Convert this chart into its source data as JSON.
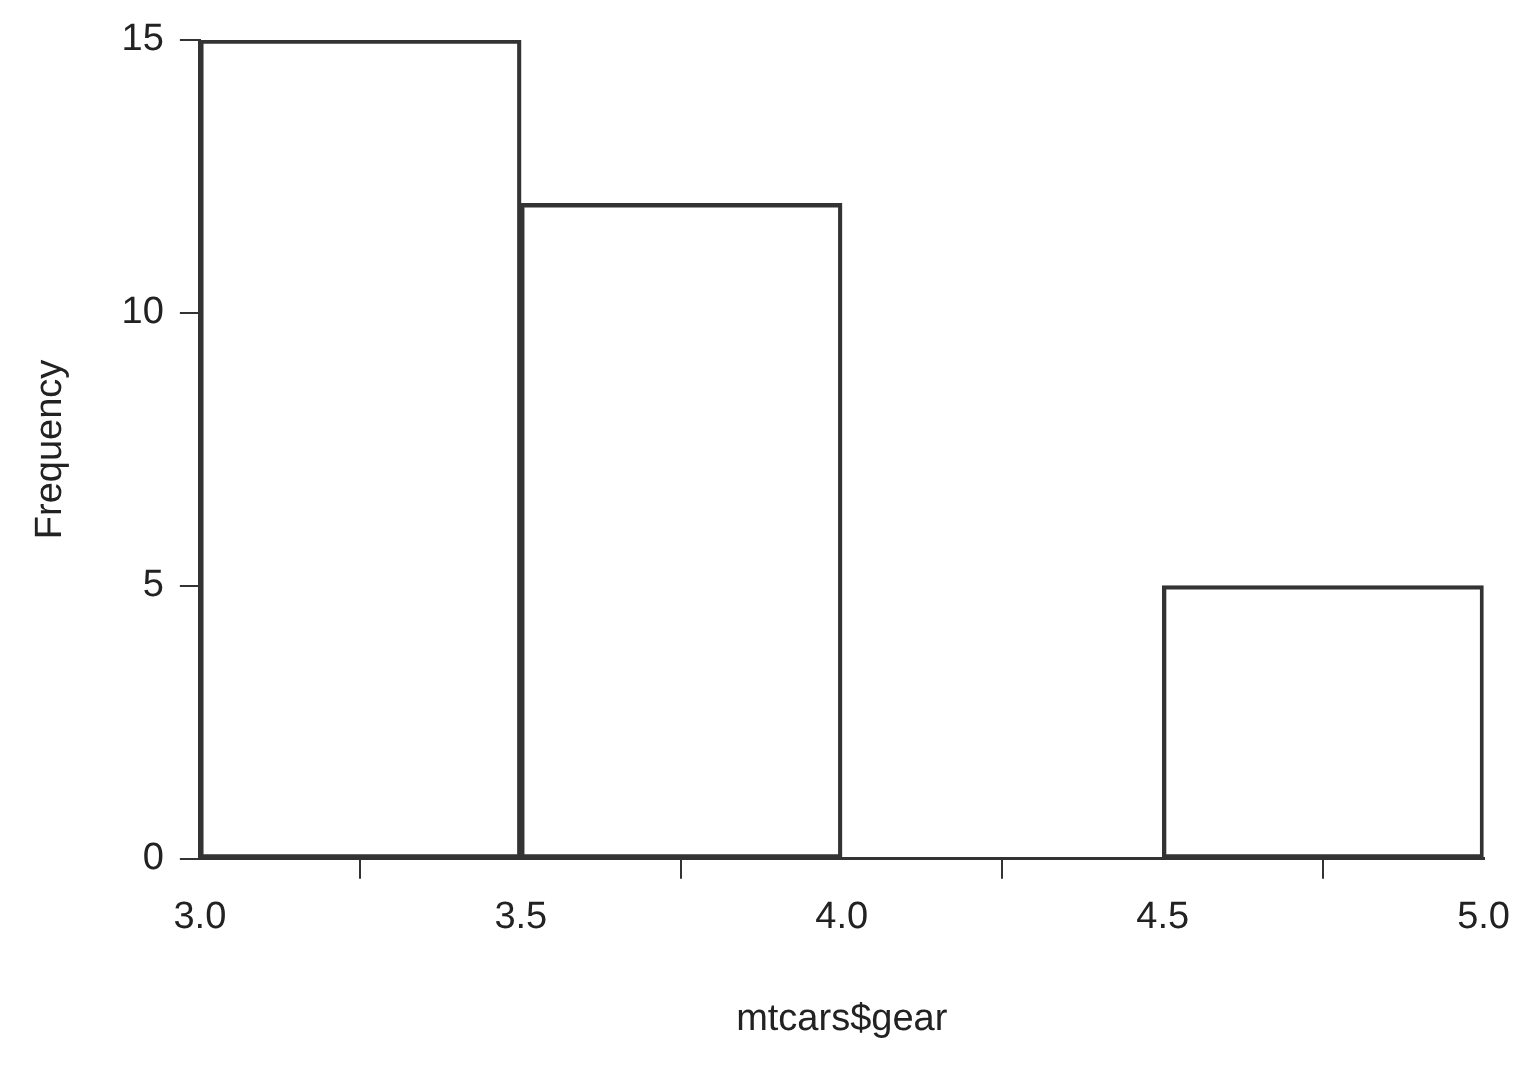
{
  "chart_data": {
    "type": "histogram",
    "xlabel": "mtcars$gear",
    "ylabel": "Frequency",
    "bins": [
      3,
      3.5,
      4,
      4.5,
      5
    ],
    "values": [
      15,
      12,
      0,
      5
    ],
    "color": "#333333",
    "xlim": [
      3,
      5
    ],
    "xticks": [
      {
        "value": 3,
        "label": "3.0"
      },
      3.5,
      {
        "value": 4,
        "label": "4.0"
      },
      4.5,
      {
        "value": 5,
        "label": "5.0"
      }
    ],
    "ylim": [
      0,
      15
    ],
    "yticks": [
      0,
      5,
      10,
      15
    ],
    "grid": false,
    "legend": false
  }
}
